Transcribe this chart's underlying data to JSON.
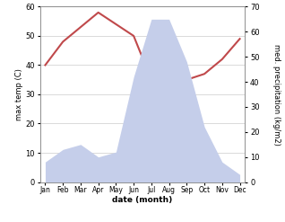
{
  "months": [
    "Jan",
    "Feb",
    "Mar",
    "Apr",
    "May",
    "Jun",
    "Jul",
    "Aug",
    "Sep",
    "Oct",
    "Nov",
    "Dec"
  ],
  "temperature": [
    40,
    48,
    53,
    58,
    54,
    50,
    35,
    33,
    35,
    37,
    42,
    49
  ],
  "precipitation": [
    8,
    13,
    15,
    10,
    12,
    42,
    65,
    65,
    48,
    22,
    8,
    3
  ],
  "temp_color": "#c0494b",
  "precip_fill_color": "#c5ceea",
  "ylabel_left": "max temp (C)",
  "ylabel_right": "med. precipitation (kg/m2)",
  "xlabel": "date (month)",
  "ylim_left": [
    0,
    60
  ],
  "ylim_right": [
    0,
    70
  ],
  "background_color": "#ffffff",
  "fig_width": 3.18,
  "fig_height": 2.47,
  "dpi": 100
}
